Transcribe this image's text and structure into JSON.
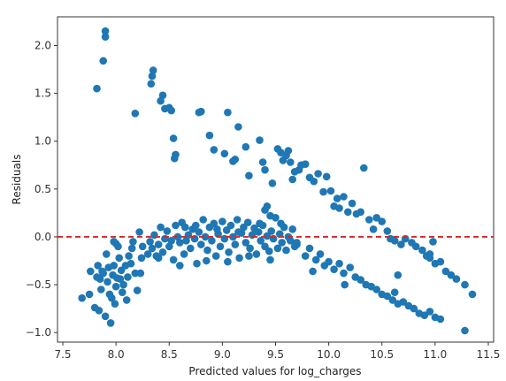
{
  "chart_data": {
    "type": "scatter",
    "title": "",
    "xlabel": "Predicted values for log_charges",
    "ylabel": "Residuals",
    "xlim": [
      7.45,
      11.55
    ],
    "ylim": [
      -1.1,
      2.3
    ],
    "xticks": [
      7.5,
      8.0,
      8.5,
      9.0,
      9.5,
      10.0,
      10.5,
      11.0,
      11.5
    ],
    "xtick_labels": [
      "7.5",
      "8.0",
      "8.5",
      "9.0",
      "9.5",
      "10.0",
      "10.5",
      "11.0",
      "11.5"
    ],
    "yticks": [
      -1.0,
      -0.5,
      0.0,
      0.5,
      1.0,
      1.5,
      2.0
    ],
    "ytick_labels": [
      "−1.0",
      "−0.5",
      "0.0",
      "0.5",
      "1.0",
      "1.5",
      "2.0"
    ],
    "grid": false,
    "legend": "none",
    "point_color": "#1f77b4",
    "reference_line": {
      "y": 0.0,
      "color": "#d62728",
      "style": "dashed"
    },
    "points": [
      [
        7.68,
        -0.64
      ],
      [
        7.75,
        -0.6
      ],
      [
        7.76,
        -0.36
      ],
      [
        7.8,
        -0.74
      ],
      [
        7.82,
        -0.42
      ],
      [
        7.84,
        -0.77
      ],
      [
        7.86,
        -0.55
      ],
      [
        7.88,
        -0.38
      ],
      [
        7.9,
        -0.83
      ],
      [
        7.92,
        -0.47
      ],
      [
        7.95,
        -0.9
      ],
      [
        7.96,
        -0.64
      ],
      [
        7.98,
        -0.3
      ],
      [
        8.0,
        -0.52
      ],
      [
        7.85,
        -0.44
      ],
      [
        7.87,
        -0.36
      ],
      [
        7.93,
        -0.32
      ],
      [
        7.97,
        -0.4
      ],
      [
        8.01,
        -0.43
      ],
      [
        8.03,
        -0.22
      ],
      [
        8.05,
        -0.35
      ],
      [
        8.07,
        -0.5
      ],
      [
        8.02,
        -0.1
      ],
      [
        8.0,
        -0.07
      ],
      [
        7.98,
        -0.05
      ],
      [
        8.04,
        -0.44
      ],
      [
        8.06,
        -0.58
      ],
      [
        8.1,
        -0.66
      ],
      [
        8.12,
        -0.2
      ],
      [
        8.14,
        -0.28
      ],
      [
        8.16,
        -0.05
      ],
      [
        8.18,
        -0.38
      ],
      [
        8.2,
        -0.56
      ],
      [
        8.22,
        0.05
      ],
      [
        8.24,
        -0.22
      ],
      [
        8.25,
        -0.1
      ],
      [
        8.23,
        -0.38
      ],
      [
        8.15,
        -0.12
      ],
      [
        8.11,
        -0.42
      ],
      [
        8.09,
        -0.3
      ],
      [
        7.94,
        -0.6
      ],
      [
        7.99,
        -0.7
      ],
      [
        7.91,
        -0.18
      ],
      [
        7.83,
        -0.3
      ],
      [
        7.82,
        1.55
      ],
      [
        7.88,
        1.84
      ],
      [
        7.9,
        2.09
      ],
      [
        7.9,
        2.15
      ],
      [
        8.18,
        1.29
      ],
      [
        8.33,
        1.6
      ],
      [
        8.34,
        1.68
      ],
      [
        8.35,
        1.74
      ],
      [
        8.42,
        1.42
      ],
      [
        8.44,
        1.48
      ],
      [
        8.46,
        1.34
      ],
      [
        8.5,
        1.35
      ],
      [
        8.52,
        1.32
      ],
      [
        8.54,
        1.03
      ],
      [
        8.56,
        0.86
      ],
      [
        8.55,
        0.82
      ],
      [
        8.3,
        -0.18
      ],
      [
        8.32,
        -0.05
      ],
      [
        8.34,
        -0.12
      ],
      [
        8.36,
        0.02
      ],
      [
        8.38,
        -0.2
      ],
      [
        8.4,
        -0.08
      ],
      [
        8.42,
        0.1
      ],
      [
        8.44,
        -0.16
      ],
      [
        8.46,
        -0.02
      ],
      [
        8.48,
        0.06
      ],
      [
        8.5,
        -0.1
      ],
      [
        8.52,
        -0.04
      ],
      [
        8.54,
        -0.24
      ],
      [
        8.56,
        0.12
      ],
      [
        8.58,
        0.0
      ],
      [
        8.6,
        -0.06
      ],
      [
        8.62,
        0.15
      ],
      [
        8.64,
        -0.18
      ],
      [
        8.66,
        -0.04
      ],
      [
        8.68,
        0.02
      ],
      [
        8.7,
        -0.12
      ],
      [
        8.72,
        0.08
      ],
      [
        8.74,
        -0.02
      ],
      [
        8.76,
        -0.28
      ],
      [
        8.78,
        0.05
      ],
      [
        8.8,
        -0.08
      ],
      [
        8.82,
        0.18
      ],
      [
        8.84,
        0.0
      ],
      [
        8.86,
        -0.14
      ],
      [
        8.88,
        0.1
      ],
      [
        8.9,
        -0.04
      ],
      [
        8.92,
        0.14
      ],
      [
        8.94,
        -0.2
      ],
      [
        8.96,
        0.03
      ],
      [
        8.98,
        -0.1
      ],
      [
        9.0,
        0.16
      ],
      [
        9.02,
        -0.02
      ],
      [
        9.04,
        0.07
      ],
      [
        9.06,
        -0.16
      ],
      [
        9.08,
        0.12
      ],
      [
        9.1,
        0.0
      ],
      [
        9.12,
        -0.08
      ],
      [
        9.14,
        0.18
      ],
      [
        9.16,
        -0.22
      ],
      [
        9.18,
        0.04
      ],
      [
        9.2,
        0.1
      ],
      [
        9.22,
        -0.06
      ],
      [
        9.24,
        0.15
      ],
      [
        9.26,
        -0.12
      ],
      [
        9.28,
        0.02
      ],
      [
        9.3,
        0.09
      ],
      [
        9.32,
        -0.18
      ],
      [
        9.34,
        0.05
      ],
      [
        9.36,
        -0.04
      ],
      [
        9.38,
        0.12
      ],
      [
        9.4,
        -0.1
      ],
      [
        9.42,
        0.01
      ],
      [
        9.44,
        -0.15
      ],
      [
        9.46,
        0.06
      ],
      [
        9.48,
        -0.02
      ],
      [
        9.5,
        0.2
      ],
      [
        9.52,
        -0.12
      ],
      [
        9.54,
        0.03
      ],
      [
        9.56,
        -0.06
      ],
      [
        9.58,
        0.1
      ],
      [
        9.6,
        -0.14
      ],
      [
        9.62,
        0.0
      ],
      [
        9.64,
        -0.04
      ],
      [
        9.66,
        0.08
      ],
      [
        9.68,
        -0.1
      ],
      [
        9.7,
        -0.06
      ],
      [
        8.4,
        -0.22
      ],
      [
        8.6,
        -0.3
      ],
      [
        8.65,
        0.1
      ],
      [
        8.85,
        -0.25
      ],
      [
        9.05,
        -0.26
      ],
      [
        9.25,
        -0.2
      ],
      [
        9.45,
        -0.24
      ],
      [
        9.15,
        0.05
      ],
      [
        8.95,
        0.08
      ],
      [
        8.75,
        0.12
      ],
      [
        9.35,
        0.14
      ],
      [
        9.55,
        0.14
      ],
      [
        8.8,
        1.31
      ],
      [
        8.78,
        1.3
      ],
      [
        8.88,
        1.06
      ],
      [
        8.92,
        0.91
      ],
      [
        9.02,
        0.87
      ],
      [
        9.05,
        1.3
      ],
      [
        9.1,
        0.79
      ],
      [
        9.12,
        0.81
      ],
      [
        9.15,
        1.15
      ],
      [
        9.22,
        0.94
      ],
      [
        9.25,
        0.64
      ],
      [
        9.35,
        1.01
      ],
      [
        9.38,
        0.78
      ],
      [
        9.4,
        0.7
      ],
      [
        9.47,
        0.56
      ],
      [
        9.52,
        0.92
      ],
      [
        9.55,
        0.88
      ],
      [
        9.57,
        0.8
      ],
      [
        9.6,
        0.85
      ],
      [
        9.62,
        0.9
      ],
      [
        9.64,
        0.78
      ],
      [
        9.66,
        0.6
      ],
      [
        9.68,
        0.68
      ],
      [
        9.72,
        0.7
      ],
      [
        9.74,
        0.75
      ],
      [
        9.78,
        0.76
      ],
      [
        9.82,
        0.62
      ],
      [
        9.86,
        0.58
      ],
      [
        9.9,
        0.66
      ],
      [
        9.95,
        0.47
      ],
      [
        9.98,
        0.63
      ],
      [
        10.02,
        0.48
      ],
      [
        10.05,
        0.32
      ],
      [
        10.08,
        0.4
      ],
      [
        10.1,
        0.3
      ],
      [
        10.14,
        0.42
      ],
      [
        10.18,
        0.26
      ],
      [
        10.22,
        0.35
      ],
      [
        10.26,
        0.24
      ],
      [
        10.3,
        0.26
      ],
      [
        10.33,
        0.72
      ],
      [
        10.38,
        0.18
      ],
      [
        10.42,
        0.08
      ],
      [
        10.45,
        0.2
      ],
      [
        10.5,
        0.16
      ],
      [
        10.55,
        0.06
      ],
      [
        10.58,
        -0.02
      ],
      [
        10.62,
        -0.04
      ],
      [
        10.68,
        -0.08
      ],
      [
        10.72,
        -0.02
      ],
      [
        10.78,
        -0.06
      ],
      [
        10.82,
        -0.1
      ],
      [
        10.88,
        -0.14
      ],
      [
        10.92,
        -0.2
      ],
      [
        10.95,
        -0.18
      ],
      [
        11.0,
        -0.28
      ],
      [
        11.05,
        -0.26
      ],
      [
        11.1,
        -0.36
      ],
      [
        11.15,
        -0.4
      ],
      [
        11.2,
        -0.44
      ],
      [
        11.28,
        -0.5
      ],
      [
        11.35,
        -0.6
      ],
      [
        10.98,
        -0.05
      ],
      [
        10.95,
        -0.22
      ],
      [
        10.65,
        -0.4
      ],
      [
        9.4,
        0.28
      ],
      [
        9.45,
        0.22
      ],
      [
        9.42,
        0.32
      ],
      [
        9.7,
        -0.08
      ],
      [
        9.78,
        -0.2
      ],
      [
        9.82,
        -0.12
      ],
      [
        9.88,
        -0.24
      ],
      [
        9.92,
        -0.18
      ],
      [
        9.96,
        -0.3
      ],
      [
        10.0,
        -0.26
      ],
      [
        10.05,
        -0.34
      ],
      [
        10.1,
        -0.28
      ],
      [
        10.14,
        -0.38
      ],
      [
        10.2,
        -0.32
      ],
      [
        10.25,
        -0.42
      ],
      [
        10.3,
        -0.45
      ],
      [
        10.35,
        -0.5
      ],
      [
        10.4,
        -0.52
      ],
      [
        10.45,
        -0.55
      ],
      [
        10.5,
        -0.6
      ],
      [
        10.55,
        -0.62
      ],
      [
        10.6,
        -0.66
      ],
      [
        10.65,
        -0.7
      ],
      [
        10.7,
        -0.68
      ],
      [
        10.75,
        -0.72
      ],
      [
        10.8,
        -0.75
      ],
      [
        10.85,
        -0.8
      ],
      [
        10.9,
        -0.82
      ],
      [
        10.95,
        -0.78
      ],
      [
        11.0,
        -0.84
      ],
      [
        11.05,
        -0.86
      ],
      [
        11.28,
        -0.98
      ],
      [
        9.85,
        -0.36
      ],
      [
        10.15,
        -0.5
      ],
      [
        10.62,
        -0.58
      ]
    ]
  }
}
